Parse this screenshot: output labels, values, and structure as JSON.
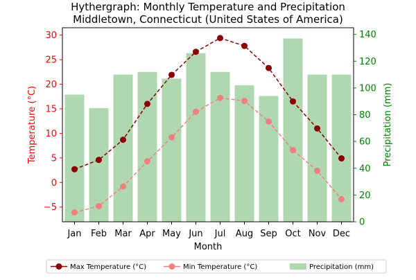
{
  "chart_data": {
    "type": "bar+line",
    "title": "Hythergraph: Monthly Temperature and Precipitation",
    "subtitle": "Middletown, Connecticut (United States of America)",
    "xlabel": "Month",
    "ylabel_left": "Temperature (°C)",
    "ylabel_right": "Precipitation (mm)",
    "categories": [
      "Jan",
      "Feb",
      "Mar",
      "Apr",
      "May",
      "Jun",
      "Jul",
      "Aug",
      "Sep",
      "Oct",
      "Nov",
      "Dec"
    ],
    "ylim_left": [
      -8,
      31.5
    ],
    "ylim_right": [
      0,
      145
    ],
    "yticks_left": [
      -5,
      0,
      5,
      10,
      15,
      20,
      25,
      30
    ],
    "yticks_right": [
      0,
      20,
      40,
      60,
      80,
      100,
      120,
      140
    ],
    "grid": false,
    "legend_position": "bottom",
    "series": [
      {
        "name": "Max Temperature (°C)",
        "kind": "line",
        "axis": "left",
        "color": "#8b0000",
        "values": [
          2.7,
          4.6,
          8.7,
          16.0,
          21.9,
          26.6,
          29.4,
          27.8,
          23.3,
          16.5,
          11.0,
          4.9
        ]
      },
      {
        "name": "Min Temperature (°C)",
        "kind": "line",
        "axis": "left",
        "color": "#f08080",
        "values": [
          -6.1,
          -4.8,
          -0.8,
          4.3,
          9.2,
          14.4,
          17.2,
          16.6,
          12.4,
          6.6,
          2.4,
          -3.4
        ]
      },
      {
        "name": "Precipitation (mm)",
        "kind": "bar",
        "axis": "right",
        "color": "#b0d8b0",
        "values": [
          95,
          85,
          110,
          112,
          107,
          126,
          112,
          102,
          94,
          137,
          110,
          110
        ]
      }
    ],
    "colors": {
      "left_axis": "#ff0000",
      "right_axis": "#008000"
    }
  }
}
